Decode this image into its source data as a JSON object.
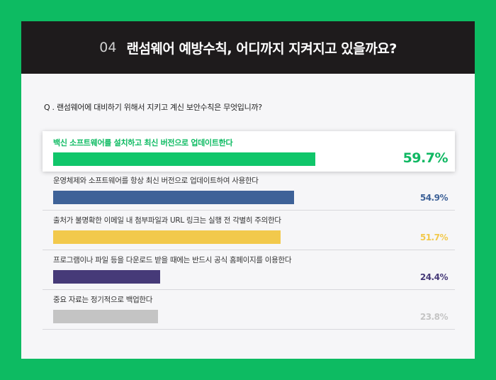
{
  "header": {
    "number": "04",
    "title": "랜섬웨어 예방수칙, 어디까지 지켜지고 있을까요?"
  },
  "question": "Q . 랜섬웨어에 대비하기 위해서 지키고 계신 보안수칙은 무엇입니까?",
  "colors": {
    "frame": "#0dbb62",
    "header_bg": "#1e1b1c"
  },
  "chart_data": {
    "type": "bar",
    "orientation": "horizontal",
    "categories": [
      "백신 소프트웨어를 설치하고 최신 버전으로 업데이트한다",
      "운영체제와 소프트웨어를 항상 최신 버전으로 업데이트하여 사용한다",
      "출처가 불명확한 이메일 내 첨부파일과 URL 링크는 실행 전 각별히 주의한다",
      "프로그램이나 파일 등을 다운로드 받을 때에는 반드시 공식 홈페이지를 이용한다",
      "중요 자료는 정기적으로 백업한다"
    ],
    "values": [
      59.7,
      54.9,
      51.7,
      24.4,
      23.8
    ],
    "value_labels": [
      "59.7%",
      "54.9%",
      "51.7%",
      "24.4%",
      "23.8%"
    ],
    "unit": "%",
    "bar_colors": [
      "#10c66a",
      "#3e6298",
      "#f2c94c",
      "#463a78",
      "#c4c4c4"
    ],
    "value_colors": [
      "#10b863",
      "#3e6298",
      "#f2c94c",
      "#463a78",
      "#c4c4c4"
    ],
    "highlight_index": 0
  }
}
